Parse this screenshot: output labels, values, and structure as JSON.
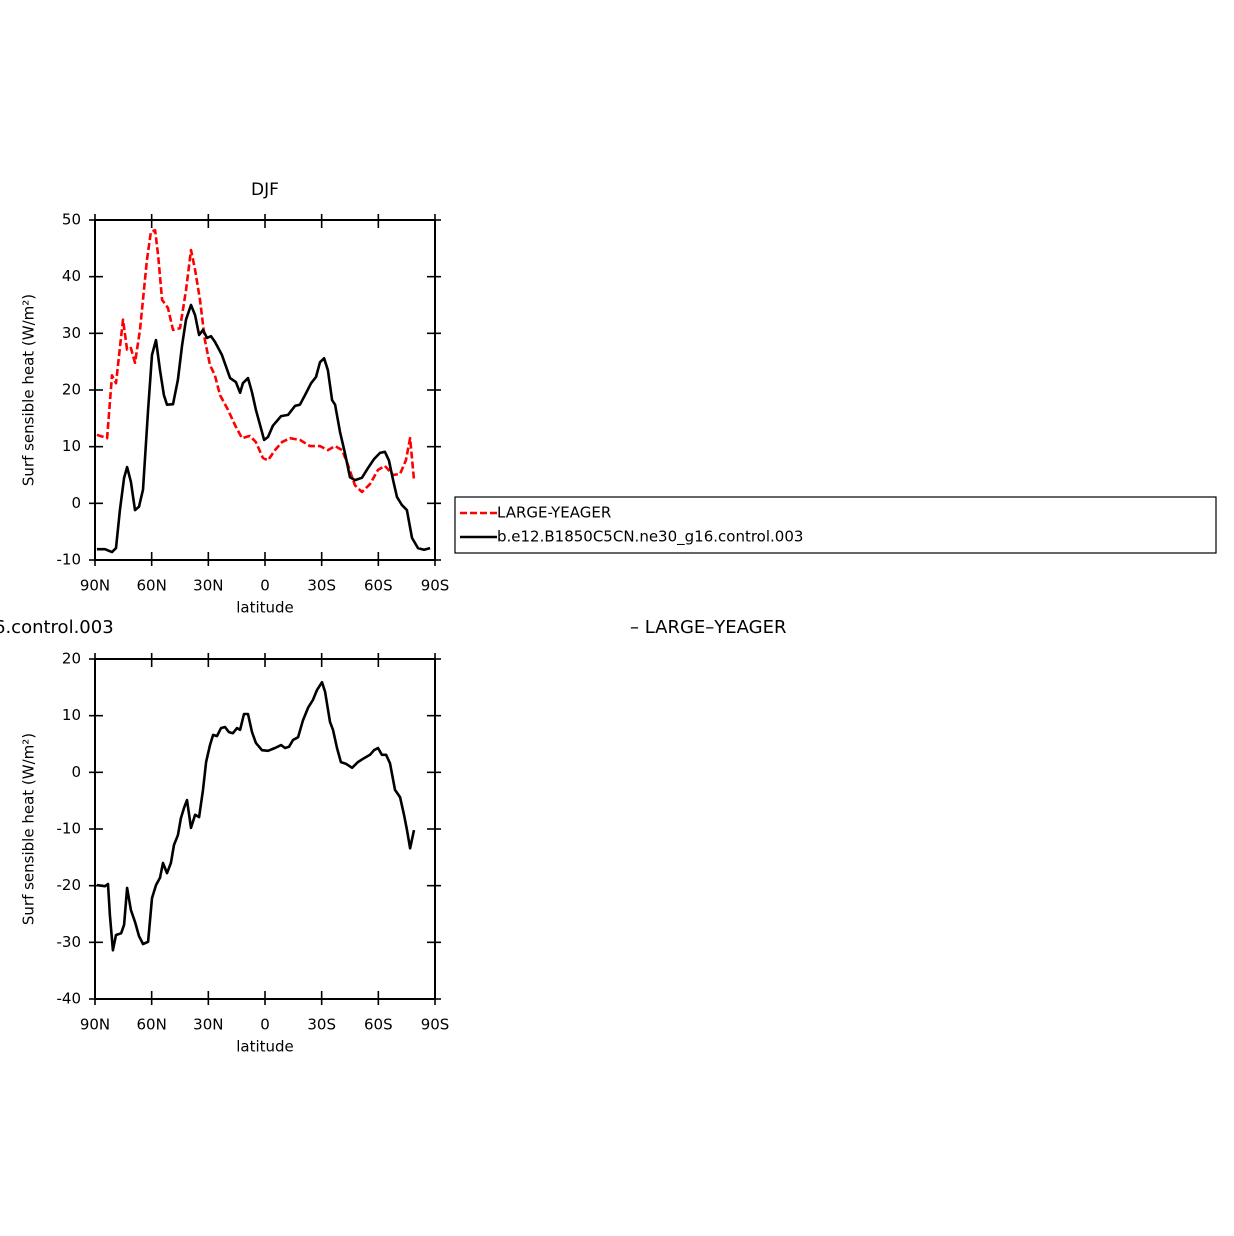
{
  "chart_data": [
    {
      "type": "line",
      "title": "DJF",
      "xlabel": "latitude",
      "ylabel": "Surf sensible heat (W/m²)",
      "xlim": [
        90,
        -90
      ],
      "ylim": [
        -10,
        50
      ],
      "xticks": [
        {
          "value": 90,
          "label": "90N"
        },
        {
          "value": 60,
          "label": "60N"
        },
        {
          "value": 30,
          "label": "30N"
        },
        0,
        {
          "value": -30,
          "label": "30S"
        },
        {
          "value": -60,
          "label": "60S"
        },
        {
          "value": -90,
          "label": "90S"
        }
      ],
      "yticks": [
        -10,
        0,
        10,
        20,
        30,
        40,
        50
      ],
      "series": [
        {
          "name": "LARGE-YEAGER",
          "color": "#ff0000",
          "dashed": true,
          "x": [
            89,
            83.6,
            81,
            78.9,
            75.2,
            73,
            71,
            68.8,
            66.2,
            62.5,
            60.4,
            58.2,
            56.6,
            54.5,
            51.4,
            48.7,
            45,
            41.8,
            39.2,
            37,
            34.4,
            31.8,
            29.1,
            26.5,
            23.8,
            19.6,
            15.9,
            12.2,
            8,
            4.8,
            1.1,
            -1.6,
            -5.3,
            -9,
            -13.2,
            -18.5,
            -23.8,
            -29.1,
            -33.3,
            -37.1,
            -40.8,
            -43.9,
            -47.6,
            -51.3,
            -55.6,
            -59.8,
            -63.5,
            -67.8,
            -71.5,
            -74.6,
            -76.8,
            -78.9
          ],
          "values": [
            12.1,
            11.5,
            22.6,
            21.2,
            32.4,
            27.1,
            27.4,
            24.8,
            30.6,
            42.9,
            47.9,
            48.2,
            43.8,
            35.9,
            34.5,
            30.6,
            30.9,
            37.6,
            44.7,
            41.2,
            35.9,
            28.8,
            24.4,
            22.6,
            19.1,
            16.5,
            13.8,
            11.5,
            11.9,
            10.8,
            8.0,
            7.6,
            9.4,
            10.8,
            11.5,
            11.2,
            10.1,
            10.1,
            9.4,
            10.1,
            9.4,
            6.8,
            3.2,
            2.0,
            3.4,
            5.9,
            6.6,
            5.0,
            5.2,
            7.6,
            11.5,
            4.1
          ]
        },
        {
          "name": "b.e12.B1850C5CN.ne30_g16.control.003",
          "color": "#000000",
          "dashed": false,
          "x": [
            89,
            84.7,
            81,
            78.9,
            76.8,
            74.6,
            73,
            71,
            68.8,
            66.7,
            64.6,
            61.9,
            59.8,
            57.7,
            55.6,
            53.5,
            51.9,
            48.7,
            46.1,
            43.9,
            41.8,
            39.2,
            37,
            34.9,
            32.8,
            30.7,
            28.6,
            26.5,
            22.8,
            18.5,
            15.4,
            13.2,
            11.7,
            9,
            6.9,
            4.8,
            2.6,
            0.5,
            -1.6,
            -4.2,
            -8.5,
            -12.2,
            -15.9,
            -18.5,
            -21.2,
            -24.4,
            -27,
            -29.1,
            -31.3,
            -33.3,
            -35.5,
            -37.1,
            -39.7,
            -42.3,
            -45,
            -47.6,
            -51.3,
            -54.5,
            -57.7,
            -60.9,
            -63.5,
            -65.6,
            -67.8,
            -69.9,
            -72.5,
            -75.1,
            -77.8,
            -81,
            -84.2,
            -87.4
          ],
          "values": [
            -8.1,
            -8.1,
            -8.6,
            -7.9,
            -1.2,
            4.5,
            6.4,
            3.8,
            -1.2,
            -0.6,
            2.4,
            16.5,
            26.2,
            28.8,
            23.5,
            19.1,
            17.4,
            17.5,
            21.8,
            27.9,
            32.4,
            35.0,
            33.2,
            29.7,
            30.6,
            29.2,
            29.5,
            28.5,
            26.2,
            22.1,
            21.4,
            19.5,
            21.2,
            22.1,
            19.6,
            16.5,
            13.8,
            11.2,
            11.7,
            13.7,
            15.4,
            15.6,
            17.2,
            17.4,
            19.1,
            21.2,
            22.3,
            24.9,
            25.6,
            23.5,
            18.2,
            17.4,
            12.6,
            8.9,
            4.6,
            4.1,
            4.5,
            6.2,
            7.8,
            8.9,
            9.1,
            7.6,
            4.1,
            1.1,
            -0.3,
            -1.2,
            -6.1,
            -7.9,
            -8.2,
            -7.9
          ]
        }
      ]
    },
    {
      "type": "line",
      "title_left": "6.control.003",
      "title_right": "– LARGE–YEAGER",
      "xlabel": "latitude",
      "ylabel": "Surf sensible heat (W/m²)",
      "xlim": [
        90,
        -90
      ],
      "ylim": [
        -40,
        20
      ],
      "xticks": [
        {
          "value": 90,
          "label": "90N"
        },
        {
          "value": 60,
          "label": "60N"
        },
        {
          "value": 30,
          "label": "30N"
        },
        0,
        {
          "value": -30,
          "label": "30S"
        },
        {
          "value": -60,
          "label": "60S"
        },
        {
          "value": -90,
          "label": "90S"
        }
      ],
      "yticks": [
        -40,
        -30,
        -20,
        -10,
        0,
        10,
        20
      ],
      "series": [
        {
          "color": "#000000",
          "dashed": false,
          "x": [
            89,
            84.7,
            83.1,
            82.1,
            80.5,
            78.9,
            76.2,
            74.6,
            73,
            71,
            68.8,
            66.7,
            64.6,
            61.9,
            59.8,
            57.7,
            55.6,
            54,
            51.9,
            49.8,
            48.2,
            46.1,
            44.5,
            42.9,
            41.3,
            39.2,
            37,
            34.9,
            32.8,
            31.2,
            29.1,
            27.5,
            25.4,
            23.3,
            21.2,
            19.1,
            17,
            14.8,
            13.2,
            11.1,
            9,
            6.9,
            4.8,
            1.6,
            -1.6,
            -5.3,
            -8.5,
            -10.6,
            -12.7,
            -14.8,
            -17.5,
            -20.1,
            -22.8,
            -25.4,
            -27.5,
            -30.2,
            -31.8,
            -34.4,
            -36,
            -38.1,
            -40.2,
            -42.9,
            -46.1,
            -49.2,
            -52.4,
            -55.6,
            -57.7,
            -59.8,
            -61.9,
            -64.1,
            -66.2,
            -68.8,
            -71.5,
            -73.6,
            -75.2,
            -76.8,
            -78.9
          ],
          "values": [
            -19.9,
            -20.1,
            -19.7,
            -25.2,
            -31.4,
            -28.7,
            -28.4,
            -26.9,
            -20.4,
            -24.3,
            -26.4,
            -28.9,
            -30.3,
            -29.9,
            -22.2,
            -19.9,
            -18.6,
            -16,
            -17.8,
            -16,
            -12.8,
            -11.1,
            -8.1,
            -6.3,
            -4.9,
            -9.8,
            -7.5,
            -7.9,
            -3.1,
            1.8,
            4.8,
            6.6,
            6.4,
            7.8,
            8,
            7.1,
            6.9,
            7.8,
            7.5,
            10.3,
            10.3,
            7.1,
            5.2,
            3.9,
            3.8,
            4.3,
            4.8,
            4.3,
            4.5,
            5.7,
            6.2,
            9.2,
            11.4,
            12.8,
            14.5,
            15.9,
            14.2,
            8.9,
            7.5,
            4.3,
            1.8,
            1.5,
            0.8,
            1.8,
            2.5,
            3.1,
            3.9,
            4.3,
            3.1,
            3.1,
            1.6,
            -3.1,
            -4.4,
            -7.5,
            -10.2,
            -13.4,
            -10.2
          ]
        }
      ]
    }
  ]
}
